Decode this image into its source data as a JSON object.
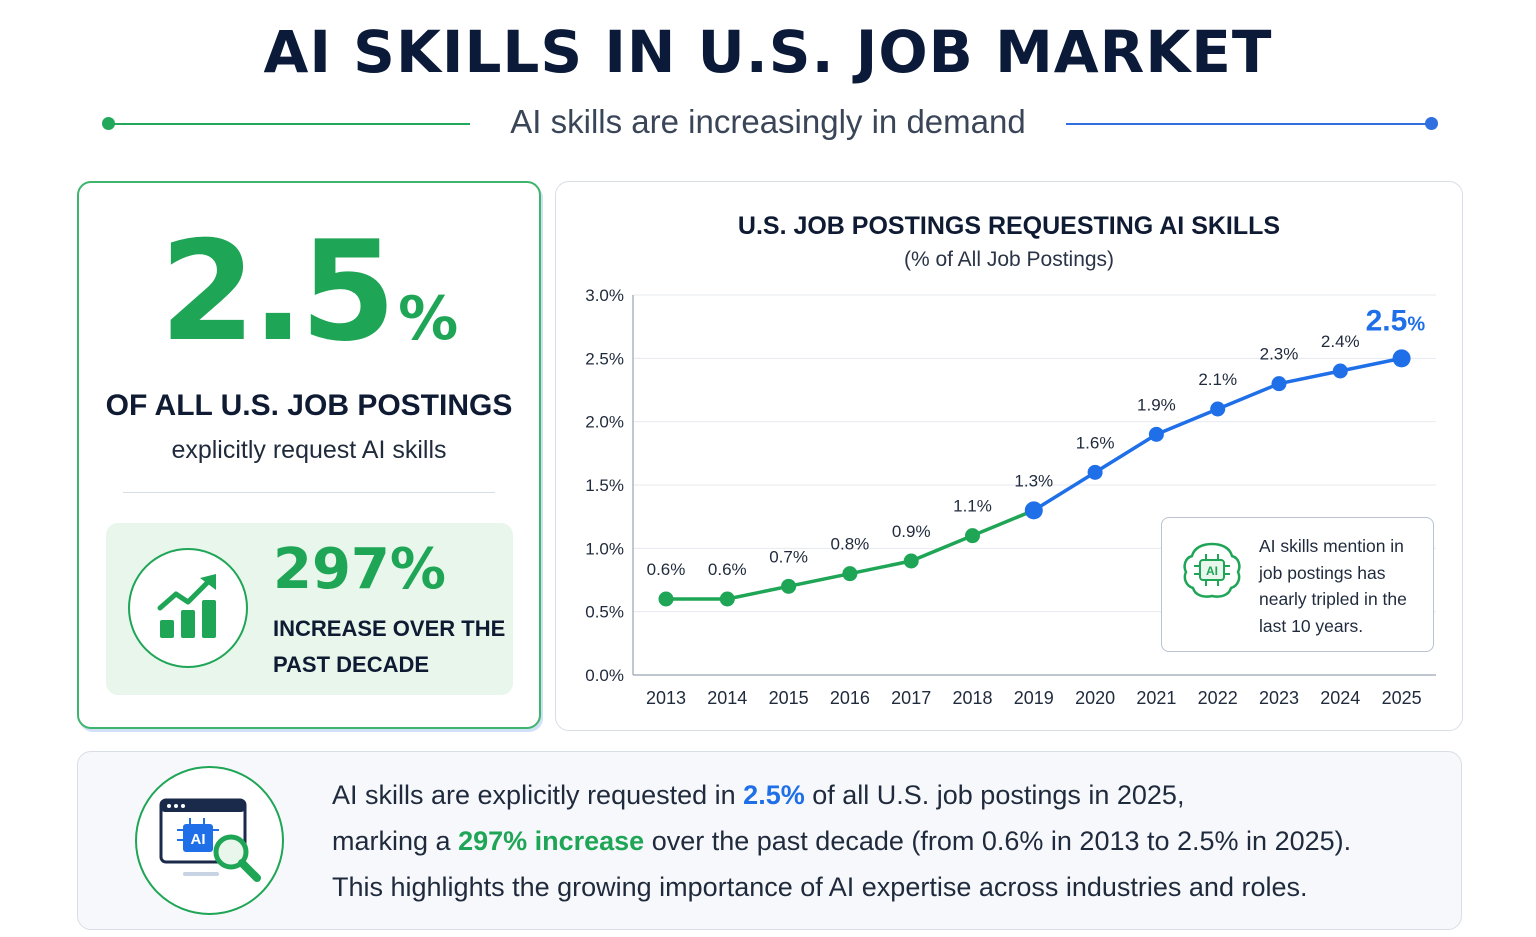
{
  "header": {
    "title": "AI SKILLS IN U.S. JOB MARKET",
    "subtitle": "AI skills are increasingly in demand"
  },
  "colors": {
    "green": "#1fa556",
    "blue": "#1f6fe8",
    "dark": "#0f1b33"
  },
  "stat_card": {
    "big_value": "2.5",
    "big_unit": "%",
    "headline": "OF ALL U.S. JOB POSTINGS",
    "subline": "explicitly request AI skills",
    "increase_value": "297%",
    "increase_label": "INCREASE OVER THE PAST DECADE",
    "icon": "growth-chart-icon"
  },
  "chart_data": {
    "type": "line",
    "title": "U.S. JOB POSTINGS REQUESTING AI SKILLS",
    "subtitle": "(% of All Job Postings)",
    "x": [
      "2013",
      "2014",
      "2015",
      "2016",
      "2017",
      "2018",
      "2019",
      "2020",
      "2021",
      "2022",
      "2023",
      "2024",
      "2025"
    ],
    "values": [
      0.6,
      0.6,
      0.7,
      0.8,
      0.9,
      1.1,
      1.3,
      1.6,
      1.9,
      2.1,
      2.3,
      2.4,
      2.5
    ],
    "labels": [
      "0.6%",
      "0.6%",
      "0.7%",
      "0.8%",
      "0.9%",
      "1.1%",
      "1.3%",
      "1.6%",
      "1.9%",
      "2.1%",
      "2.3%",
      "2.4%",
      "2.5%"
    ],
    "yticks": [
      "0.0%",
      "0.5%",
      "1.0%",
      "1.5%",
      "2.0%",
      "2.5%",
      "3.0%"
    ],
    "ylim": [
      0,
      3.0
    ],
    "segment_colors": {
      "early": "#1fa556",
      "late": "#1f6fe8"
    },
    "grid": true
  },
  "callout": {
    "text": "AI skills mention in job postings has nearly tripled in the last 10 years.",
    "icon": "ai-brain-icon"
  },
  "summary": {
    "icon": "ai-search-icon",
    "line1_pre": "AI skills are explicitly requested in ",
    "line1_hl": "2.5%",
    "line1_post": " of all U.S. job postings in 2025,",
    "line2_pre": "marking a ",
    "line2_hl": "297% increase",
    "line2_post": " over the past decade (from 0.6% in 2013 to 2.5% in 2025).",
    "line3": "This highlights the growing importance of AI expertise across industries and roles."
  }
}
